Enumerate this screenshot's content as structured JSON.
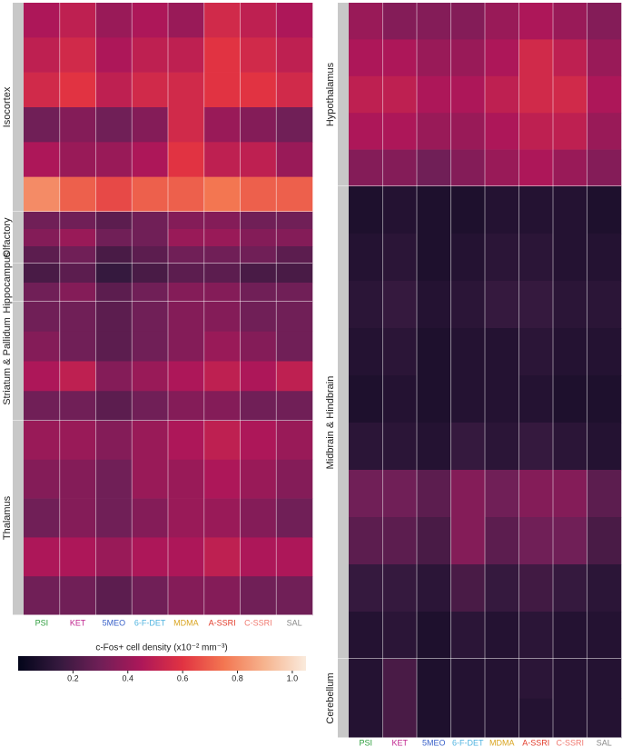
{
  "chart_data": {
    "type": "heatmap",
    "colorbar_title": "c-Fos+ cell density (x10⁻² mm⁻³)",
    "clim": [
      0,
      1.05
    ],
    "cticks": [
      0.2,
      0.4,
      0.6,
      0.8,
      {
        "value": 1,
        "label": "1.0"
      }
    ],
    "colormap": [
      "#03051a",
      "#35193e",
      "#701f57",
      "#ad1759",
      "#e13342",
      "#f37651",
      "#f6b48f",
      "#faebdd"
    ],
    "columns": [
      "PSI",
      "KET",
      "5MEO",
      "6-F-DET",
      "MDMA",
      "A-SSRI",
      "C-SSRI",
      "SAL"
    ],
    "column_colors": [
      "#2e9e3e",
      "#c0268f",
      "#3a62c9",
      "#4fb3e0",
      "#d9a521",
      "#e23b2a",
      "#f07a70",
      "#888888"
    ],
    "panels": [
      {
        "groups": [
          {
            "name": "Isocortex",
            "bands": [
              [
                0.45,
                0.5,
                0.4,
                0.45,
                0.4,
                0.55,
                0.5,
                0.45
              ],
              [
                0.5,
                0.55,
                0.45,
                0.5,
                0.5,
                0.6,
                0.55,
                0.5
              ],
              [
                0.55,
                0.6,
                0.5,
                0.55,
                0.55,
                0.6,
                0.6,
                0.55
              ],
              [
                0.3,
                0.35,
                0.3,
                0.35,
                0.55,
                0.4,
                0.35,
                0.3
              ],
              [
                0.45,
                0.4,
                0.4,
                0.45,
                0.6,
                0.5,
                0.5,
                0.4
              ],
              [
                0.8,
                0.7,
                0.65,
                0.7,
                0.7,
                0.75,
                0.7,
                0.7
              ]
            ]
          },
          {
            "name": "Olfactory",
            "bands": [
              [
                0.3,
                0.3,
                0.25,
                0.3,
                0.35,
                0.35,
                0.3,
                0.3
              ],
              [
                0.35,
                0.4,
                0.3,
                0.3,
                0.4,
                0.4,
                0.35,
                0.35
              ],
              [
                0.25,
                0.3,
                0.2,
                0.25,
                0.3,
                0.3,
                0.3,
                0.25
              ]
            ]
          },
          {
            "name": "Hippocampus",
            "bands": [
              [
                0.2,
                0.25,
                0.15,
                0.2,
                0.25,
                0.25,
                0.2,
                0.2
              ],
              [
                0.3,
                0.35,
                0.25,
                0.3,
                0.35,
                0.35,
                0.3,
                0.3
              ]
            ]
          },
          {
            "name": "Striatum & Pallidum",
            "bands": [
              [
                0.3,
                0.3,
                0.25,
                0.3,
                0.35,
                0.35,
                0.3,
                0.3
              ],
              [
                0.35,
                0.3,
                0.25,
                0.3,
                0.35,
                0.4,
                0.35,
                0.3
              ],
              [
                0.45,
                0.5,
                0.35,
                0.4,
                0.45,
                0.5,
                0.45,
                0.5
              ],
              [
                0.3,
                0.3,
                0.25,
                0.3,
                0.35,
                0.35,
                0.3,
                0.3
              ]
            ]
          },
          {
            "name": "Thalamus",
            "bands": [
              [
                0.4,
                0.4,
                0.35,
                0.4,
                0.45,
                0.5,
                0.45,
                0.4
              ],
              [
                0.35,
                0.35,
                0.3,
                0.4,
                0.4,
                0.45,
                0.4,
                0.35
              ],
              [
                0.3,
                0.35,
                0.3,
                0.35,
                0.4,
                0.4,
                0.35,
                0.3
              ],
              [
                0.45,
                0.45,
                0.4,
                0.45,
                0.45,
                0.5,
                0.45,
                0.45
              ],
              [
                0.3,
                0.3,
                0.25,
                0.3,
                0.35,
                0.35,
                0.3,
                0.3
              ]
            ]
          }
        ]
      },
      {
        "groups": [
          {
            "name": "Hypothalamus",
            "bands": [
              [
                0.4,
                0.35,
                0.35,
                0.35,
                0.4,
                0.45,
                0.4,
                0.35
              ],
              [
                0.45,
                0.45,
                0.4,
                0.4,
                0.45,
                0.55,
                0.5,
                0.4
              ],
              [
                0.5,
                0.5,
                0.45,
                0.45,
                0.5,
                0.55,
                0.55,
                0.45
              ],
              [
                0.45,
                0.45,
                0.4,
                0.4,
                0.45,
                0.5,
                0.5,
                0.4
              ],
              [
                0.35,
                0.35,
                0.3,
                0.35,
                0.4,
                0.45,
                0.4,
                0.35
              ]
            ]
          },
          {
            "name": "Midbrain & Hindbrain",
            "bands": [
              [
                0.08,
                0.1,
                0.08,
                0.08,
                0.1,
                0.1,
                0.1,
                0.08
              ],
              [
                0.1,
                0.12,
                0.08,
                0.1,
                0.12,
                0.12,
                0.1,
                0.1
              ],
              [
                0.12,
                0.15,
                0.1,
                0.12,
                0.15,
                0.15,
                0.12,
                0.12
              ],
              [
                0.1,
                0.12,
                0.08,
                0.1,
                0.1,
                0.12,
                0.1,
                0.1
              ],
              [
                0.08,
                0.1,
                0.08,
                0.1,
                0.1,
                0.1,
                0.08,
                0.08
              ],
              [
                0.12,
                0.12,
                0.1,
                0.15,
                0.12,
                0.15,
                0.12,
                0.1
              ],
              [
                0.3,
                0.3,
                0.25,
                0.35,
                0.3,
                0.35,
                0.35,
                0.25
              ],
              [
                0.25,
                0.25,
                0.2,
                0.35,
                0.25,
                0.3,
                0.3,
                0.2
              ],
              [
                0.15,
                0.15,
                0.12,
                0.2,
                0.15,
                0.18,
                0.15,
                0.12
              ],
              [
                0.1,
                0.12,
                0.08,
                0.12,
                0.1,
                0.12,
                0.1,
                0.1
              ]
            ]
          },
          {
            "name": "Cerebellum",
            "bands": [
              [
                0.1,
                0.2,
                0.08,
                0.1,
                0.1,
                0.12,
                0.1,
                0.1
              ],
              [
                0.1,
                0.2,
                0.08,
                0.1,
                0.1,
                0.1,
                0.1,
                0.1
              ]
            ]
          }
        ]
      }
    ]
  }
}
